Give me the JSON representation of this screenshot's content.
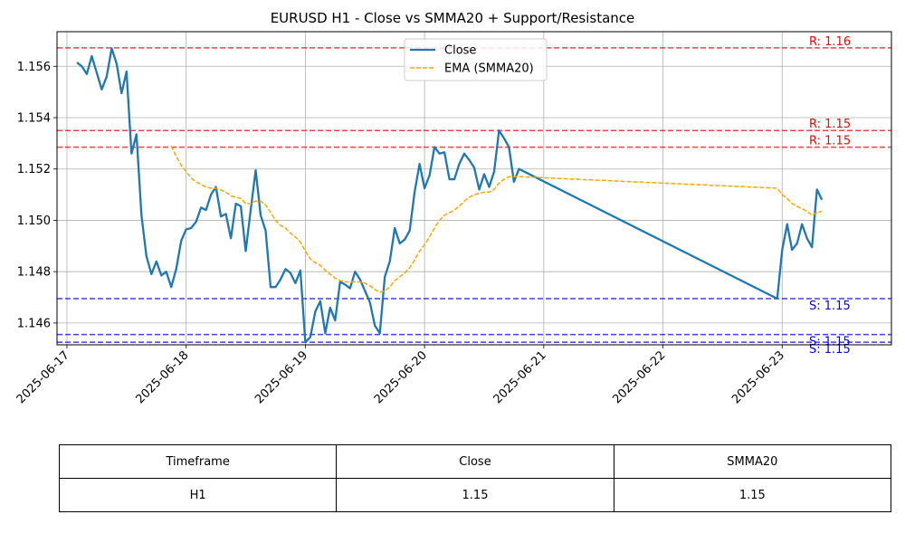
{
  "chart_data": {
    "type": "line",
    "title": "EURUSD H1 - Close vs SMMA20 + Support/Resistance",
    "xlabel": "",
    "ylabel": "",
    "ylim": [
      1.14515,
      1.15735
    ],
    "xlim": [
      "2025-06-16T22:00",
      "2025-06-23T22:00"
    ],
    "grid": true,
    "legend_position": "top-center",
    "x_ticks": [
      "2025-06-17",
      "2025-06-18",
      "2025-06-19",
      "2025-06-20",
      "2025-06-21",
      "2025-06-22",
      "2025-06-23"
    ],
    "y_ticks": [
      "1.146",
      "1.148",
      "1.150",
      "1.152",
      "1.154",
      "1.156"
    ],
    "series": [
      {
        "name": "Close",
        "color": "#1f77b4",
        "style": "solid",
        "points": [
          [
            "2025-06-17T02:00",
            1.15615
          ],
          [
            "2025-06-17T03:00",
            1.156
          ],
          [
            "2025-06-17T04:00",
            1.1557
          ],
          [
            "2025-06-17T05:00",
            1.1564
          ],
          [
            "2025-06-17T06:00",
            1.15575
          ],
          [
            "2025-06-17T07:00",
            1.1551
          ],
          [
            "2025-06-17T08:00",
            1.1556
          ],
          [
            "2025-06-17T09:00",
            1.1567
          ],
          [
            "2025-06-17T10:00",
            1.1561
          ],
          [
            "2025-06-17T11:00",
            1.15495
          ],
          [
            "2025-06-17T12:00",
            1.1558
          ],
          [
            "2025-06-17T13:00",
            1.1526
          ],
          [
            "2025-06-17T14:00",
            1.15335
          ],
          [
            "2025-06-17T15:00",
            1.1502
          ],
          [
            "2025-06-17T16:00",
            1.1486
          ],
          [
            "2025-06-17T17:00",
            1.1479
          ],
          [
            "2025-06-17T18:00",
            1.1484
          ],
          [
            "2025-06-17T19:00",
            1.14785
          ],
          [
            "2025-06-17T20:00",
            1.148
          ],
          [
            "2025-06-17T21:00",
            1.1474
          ],
          [
            "2025-06-17T22:00",
            1.1481
          ],
          [
            "2025-06-17T23:00",
            1.1492
          ],
          [
            "2025-06-18T00:00",
            1.14965
          ],
          [
            "2025-06-18T01:00",
            1.1497
          ],
          [
            "2025-06-18T02:00",
            1.14995
          ],
          [
            "2025-06-18T03:00",
            1.1505
          ],
          [
            "2025-06-18T04:00",
            1.1504
          ],
          [
            "2025-06-18T05:00",
            1.151
          ],
          [
            "2025-06-18T06:00",
            1.1513
          ],
          [
            "2025-06-18T07:00",
            1.15015
          ],
          [
            "2025-06-18T08:00",
            1.15025
          ],
          [
            "2025-06-18T09:00",
            1.1493
          ],
          [
            "2025-06-18T10:00",
            1.15065
          ],
          [
            "2025-06-18T11:00",
            1.15055
          ],
          [
            "2025-06-18T12:00",
            1.1488
          ],
          [
            "2025-06-18T13:00",
            1.1504
          ],
          [
            "2025-06-18T14:00",
            1.15195
          ],
          [
            "2025-06-18T15:00",
            1.1502
          ],
          [
            "2025-06-18T16:00",
            1.1496
          ],
          [
            "2025-06-18T17:00",
            1.1474
          ],
          [
            "2025-06-18T18:00",
            1.1474
          ],
          [
            "2025-06-18T19:00",
            1.1477
          ],
          [
            "2025-06-18T20:00",
            1.1481
          ],
          [
            "2025-06-18T21:00",
            1.14795
          ],
          [
            "2025-06-18T22:00",
            1.14755
          ],
          [
            "2025-06-18T23:00",
            1.14805
          ],
          [
            "2025-06-19T00:00",
            1.14525
          ],
          [
            "2025-06-19T01:00",
            1.14545
          ],
          [
            "2025-06-19T02:00",
            1.14645
          ],
          [
            "2025-06-19T03:00",
            1.14685
          ],
          [
            "2025-06-19T04:00",
            1.1456
          ],
          [
            "2025-06-19T05:00",
            1.1466
          ],
          [
            "2025-06-19T06:00",
            1.1461
          ],
          [
            "2025-06-19T07:00",
            1.1476
          ],
          [
            "2025-06-19T08:00",
            1.1475
          ],
          [
            "2025-06-19T09:00",
            1.14735
          ],
          [
            "2025-06-19T10:00",
            1.148
          ],
          [
            "2025-06-19T11:00",
            1.1477
          ],
          [
            "2025-06-19T12:00",
            1.14725
          ],
          [
            "2025-06-19T13:00",
            1.1468
          ],
          [
            "2025-06-19T14:00",
            1.1459
          ],
          [
            "2025-06-19T15:00",
            1.1456
          ],
          [
            "2025-06-19T16:00",
            1.1478
          ],
          [
            "2025-06-19T17:00",
            1.1484
          ],
          [
            "2025-06-19T18:00",
            1.1497
          ],
          [
            "2025-06-19T19:00",
            1.1491
          ],
          [
            "2025-06-19T20:00",
            1.14925
          ],
          [
            "2025-06-19T21:00",
            1.1496
          ],
          [
            "2025-06-19T22:00",
            1.1511
          ],
          [
            "2025-06-19T23:00",
            1.1522
          ],
          [
            "2025-06-20T00:00",
            1.15125
          ],
          [
            "2025-06-20T01:00",
            1.15175
          ],
          [
            "2025-06-20T02:00",
            1.15285
          ],
          [
            "2025-06-20T03:00",
            1.1526
          ],
          [
            "2025-06-20T04:00",
            1.15265
          ],
          [
            "2025-06-20T05:00",
            1.1516
          ],
          [
            "2025-06-20T06:00",
            1.1516
          ],
          [
            "2025-06-20T07:00",
            1.1522
          ],
          [
            "2025-06-20T08:00",
            1.1526
          ],
          [
            "2025-06-20T09:00",
            1.15235
          ],
          [
            "2025-06-20T10:00",
            1.15205
          ],
          [
            "2025-06-20T11:00",
            1.1512
          ],
          [
            "2025-06-20T12:00",
            1.1518
          ],
          [
            "2025-06-20T13:00",
            1.1513
          ],
          [
            "2025-06-20T14:00",
            1.1519
          ],
          [
            "2025-06-20T15:00",
            1.1535
          ],
          [
            "2025-06-20T16:00",
            1.1532
          ],
          [
            "2025-06-20T17:00",
            1.15285
          ],
          [
            "2025-06-20T18:00",
            1.1515
          ],
          [
            "2025-06-20T19:00",
            1.152
          ],
          [
            "2025-06-22T23:00",
            1.14695
          ],
          [
            "2025-06-23T00:00",
            1.14885
          ],
          [
            "2025-06-23T01:00",
            1.14985
          ],
          [
            "2025-06-23T02:00",
            1.14885
          ],
          [
            "2025-06-23T03:00",
            1.1491
          ],
          [
            "2025-06-23T04:00",
            1.14985
          ],
          [
            "2025-06-23T05:00",
            1.1493
          ],
          [
            "2025-06-23T06:00",
            1.14895
          ],
          [
            "2025-06-23T07:00",
            1.1512
          ],
          [
            "2025-06-23T08:00",
            1.1508
          ]
        ]
      },
      {
        "name": "EMA (SMMA20)",
        "color": "#ffa500",
        "style": "dashed",
        "points": [
          [
            "2025-06-17T21:00",
            1.1529
          ],
          [
            "2025-06-17T22:00",
            1.1525
          ],
          [
            "2025-06-17T23:00",
            1.15215
          ],
          [
            "2025-06-18T00:00",
            1.1519
          ],
          [
            "2025-06-18T01:00",
            1.15165
          ],
          [
            "2025-06-18T02:00",
            1.1515
          ],
          [
            "2025-06-18T03:00",
            1.1514
          ],
          [
            "2025-06-18T04:00",
            1.1513
          ],
          [
            "2025-06-18T05:00",
            1.15125
          ],
          [
            "2025-06-18T06:00",
            1.15125
          ],
          [
            "2025-06-18T07:00",
            1.15118
          ],
          [
            "2025-06-18T08:00",
            1.1511
          ],
          [
            "2025-06-18T09:00",
            1.15095
          ],
          [
            "2025-06-18T10:00",
            1.1509
          ],
          [
            "2025-06-18T11:00",
            1.15085
          ],
          [
            "2025-06-18T12:00",
            1.15065
          ],
          [
            "2025-06-18T13:00",
            1.15065
          ],
          [
            "2025-06-18T14:00",
            1.15075
          ],
          [
            "2025-06-18T15:00",
            1.15075
          ],
          [
            "2025-06-18T16:00",
            1.1506
          ],
          [
            "2025-06-18T17:00",
            1.1503
          ],
          [
            "2025-06-18T18:00",
            1.15
          ],
          [
            "2025-06-18T19:00",
            1.1498
          ],
          [
            "2025-06-18T20:00",
            1.1497
          ],
          [
            "2025-06-18T21:00",
            1.1495
          ],
          [
            "2025-06-18T22:00",
            1.14935
          ],
          [
            "2025-06-18T23:00",
            1.14915
          ],
          [
            "2025-06-19T00:00",
            1.1488
          ],
          [
            "2025-06-19T01:00",
            1.1485
          ],
          [
            "2025-06-19T02:00",
            1.14835
          ],
          [
            "2025-06-19T03:00",
            1.14825
          ],
          [
            "2025-06-19T04:00",
            1.14805
          ],
          [
            "2025-06-19T05:00",
            1.1479
          ],
          [
            "2025-06-19T06:00",
            1.14775
          ],
          [
            "2025-06-19T07:00",
            1.14765
          ],
          [
            "2025-06-19T08:00",
            1.1476
          ],
          [
            "2025-06-19T09:00",
            1.1476
          ],
          [
            "2025-06-19T10:00",
            1.1476
          ],
          [
            "2025-06-19T11:00",
            1.1476
          ],
          [
            "2025-06-19T12:00",
            1.14755
          ],
          [
            "2025-06-19T13:00",
            1.14745
          ],
          [
            "2025-06-19T14:00",
            1.1473
          ],
          [
            "2025-06-19T15:00",
            1.1472
          ],
          [
            "2025-06-19T16:00",
            1.14725
          ],
          [
            "2025-06-19T17:00",
            1.1474
          ],
          [
            "2025-06-19T18:00",
            1.14765
          ],
          [
            "2025-06-19T19:00",
            1.1478
          ],
          [
            "2025-06-19T20:00",
            1.14795
          ],
          [
            "2025-06-19T21:00",
            1.14815
          ],
          [
            "2025-06-19T22:00",
            1.14845
          ],
          [
            "2025-06-19T23:00",
            1.1488
          ],
          [
            "2025-06-20T00:00",
            1.14905
          ],
          [
            "2025-06-20T01:00",
            1.14935
          ],
          [
            "2025-06-20T02:00",
            1.1497
          ],
          [
            "2025-06-20T03:00",
            1.15
          ],
          [
            "2025-06-20T04:00",
            1.1502
          ],
          [
            "2025-06-20T05:00",
            1.1503
          ],
          [
            "2025-06-20T06:00",
            1.1504
          ],
          [
            "2025-06-20T07:00",
            1.15055
          ],
          [
            "2025-06-20T08:00",
            1.15075
          ],
          [
            "2025-06-20T09:00",
            1.1509
          ],
          [
            "2025-06-20T10:00",
            1.151
          ],
          [
            "2025-06-20T11:00",
            1.15105
          ],
          [
            "2025-06-20T12:00",
            1.1511
          ],
          [
            "2025-06-20T13:00",
            1.1511
          ],
          [
            "2025-06-20T14:00",
            1.1512
          ],
          [
            "2025-06-20T15:00",
            1.15145
          ],
          [
            "2025-06-20T16:00",
            1.1516
          ],
          [
            "2025-06-20T17:00",
            1.1517
          ],
          [
            "2025-06-20T18:00",
            1.1517
          ],
          [
            "2025-06-20T19:00",
            1.1517
          ],
          [
            "2025-06-22T23:00",
            1.15125
          ],
          [
            "2025-06-23T00:00",
            1.151
          ],
          [
            "2025-06-23T01:00",
            1.15085
          ],
          [
            "2025-06-23T02:00",
            1.15065
          ],
          [
            "2025-06-23T03:00",
            1.15055
          ],
          [
            "2025-06-23T04:00",
            1.15045
          ],
          [
            "2025-06-23T05:00",
            1.15035
          ],
          [
            "2025-06-23T06:00",
            1.1502
          ],
          [
            "2025-06-23T07:00",
            1.1503
          ],
          [
            "2025-06-23T08:00",
            1.15035
          ]
        ]
      }
    ],
    "hlines": [
      {
        "kind": "resistance",
        "value": 1.15672,
        "label": "R: 1.16",
        "color": "#ff0000"
      },
      {
        "kind": "resistance",
        "value": 1.1535,
        "label": "R: 1.15",
        "color": "#ff0000"
      },
      {
        "kind": "resistance",
        "value": 1.15285,
        "label": "R: 1.15",
        "color": "#ff0000"
      },
      {
        "kind": "support",
        "value": 1.14695,
        "label": "S: 1.15",
        "color": "#0000ff"
      },
      {
        "kind": "support",
        "value": 1.14555,
        "label": "S: 1.15",
        "color": "#0000ff"
      },
      {
        "kind": "support",
        "value": 1.14525,
        "label": "S: 1.15",
        "color": "#0000ff"
      }
    ]
  },
  "table": {
    "headers": [
      "Timeframe",
      "Close",
      "SMMA20"
    ],
    "row": [
      "H1",
      "1.15",
      "1.15"
    ]
  }
}
